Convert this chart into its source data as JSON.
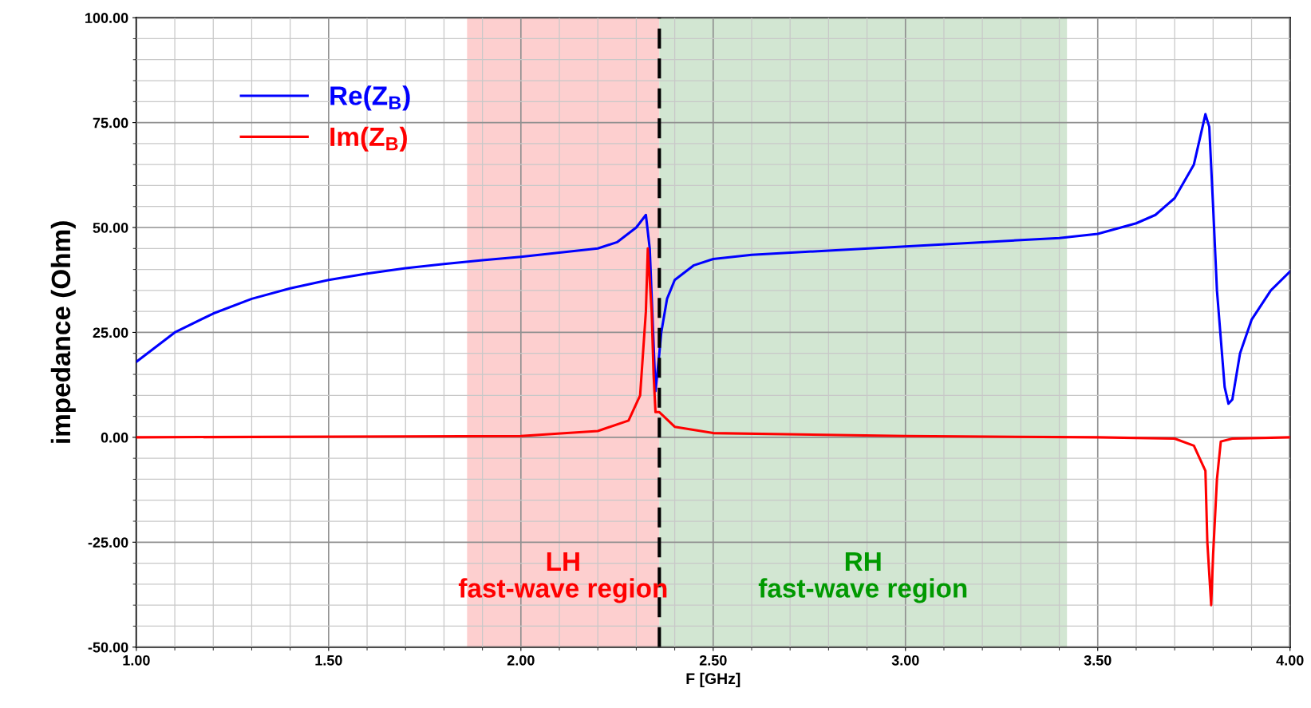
{
  "chart_data": {
    "type": "line",
    "xlabel": "F [GHz]",
    "ylabel": "impedance (Ohm)",
    "xlim": [
      1.0,
      4.0
    ],
    "ylim": [
      -50,
      100
    ],
    "xticks": [
      {
        "value": 1.0,
        "label": "1.00"
      },
      {
        "value": 1.5,
        "label": "1.50"
      },
      {
        "value": 2.0,
        "label": "2.00"
      },
      {
        "value": 2.5,
        "label": "2.50"
      },
      {
        "value": 3.0,
        "label": "3.00"
      },
      {
        "value": 3.5,
        "label": "3.50"
      },
      {
        "value": 4.0,
        "label": "4.00"
      }
    ],
    "yticks": [
      {
        "value": -50,
        "label": "-50.00"
      },
      {
        "value": -25,
        "label": "-25.00"
      },
      {
        "value": 0,
        "label": "0.00"
      },
      {
        "value": 25,
        "label": "25.00"
      },
      {
        "value": 50,
        "label": "50.00"
      },
      {
        "value": 75,
        "label": "75.00"
      },
      {
        "value": 100,
        "label": "100.00"
      }
    ],
    "grid": true,
    "legend": "top left",
    "series": [
      {
        "name": "Re(Z$_{B}$)",
        "color": "#0000ff",
        "x": [
          1.0,
          1.1,
          1.2,
          1.3,
          1.4,
          1.5,
          1.6,
          1.7,
          1.8,
          1.9,
          2.0,
          2.1,
          2.2,
          2.25,
          2.3,
          2.325,
          2.335,
          2.35,
          2.36,
          2.365,
          2.38,
          2.4,
          2.45,
          2.5,
          2.6,
          2.8,
          3.0,
          3.2,
          3.4,
          3.5,
          3.6,
          3.65,
          3.7,
          3.75,
          3.78,
          3.79,
          3.8,
          3.81,
          3.83,
          3.84,
          3.85,
          3.87,
          3.9,
          3.95,
          4.0
        ],
        "values": [
          18,
          25,
          29.5,
          33,
          35.5,
          37.5,
          39,
          40.3,
          41.3,
          42.2,
          43,
          44,
          45,
          46.5,
          50,
          53,
          45,
          11,
          20,
          25,
          33,
          37.5,
          41,
          42.5,
          43.5,
          44.5,
          45.5,
          46.5,
          47.5,
          48.5,
          51,
          53,
          57,
          65,
          77,
          74,
          55,
          35,
          12,
          8,
          9,
          20,
          28,
          35,
          39.5
        ]
      },
      {
        "name": "Im(Z$_{B}$)",
        "color": "#ff0000",
        "x": [
          1.0,
          2.0,
          2.2,
          2.28,
          2.31,
          2.325,
          2.33,
          2.34,
          2.345,
          2.35,
          2.36,
          2.4,
          2.5,
          3.0,
          3.5,
          3.7,
          3.75,
          3.78,
          3.785,
          3.795,
          3.8,
          3.81,
          3.82,
          3.85,
          4.0
        ],
        "values": [
          0,
          0.3,
          1.5,
          4,
          10,
          30,
          45,
          30,
          15,
          6,
          6,
          2.5,
          1,
          0.3,
          0,
          -0.3,
          -2,
          -8,
          -25,
          -40,
          -28,
          -10,
          -1,
          -0.3,
          0
        ]
      }
    ],
    "bands": [
      {
        "axis": "x",
        "from": 1.86,
        "to": 2.36,
        "label": "LH\nfast-wave region",
        "color": "#fdcaca"
      },
      {
        "axis": "x",
        "from": 2.36,
        "to": 3.42,
        "label": "RH\nfast-wave region",
        "color": "#cde3cd"
      }
    ],
    "ref_lines": [
      {
        "axis": "x",
        "value": 2.36,
        "color": "#000000",
        "line_style": "dashed"
      }
    ]
  }
}
